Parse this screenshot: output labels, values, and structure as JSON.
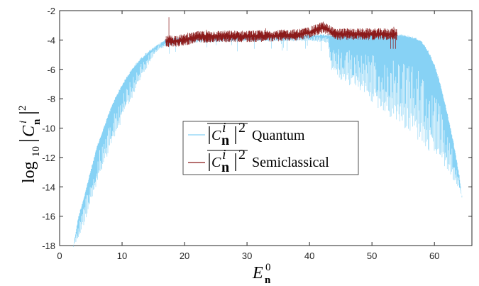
{
  "chart_data": {
    "type": "line",
    "xlabel": {
      "main": "E",
      "sub": "n",
      "sup": "0"
    },
    "ylabel": {
      "func": "log",
      "func_sub": "10",
      "var": "C",
      "var_sup": "i",
      "var_sub": "n",
      "power": "2"
    },
    "xlim": [
      0,
      66
    ],
    "ylim": [
      -18,
      -2
    ],
    "x_ticks": [
      0,
      10,
      20,
      30,
      40,
      50,
      60
    ],
    "y_ticks": [
      -18,
      -16,
      -14,
      -12,
      -10,
      -8,
      -6,
      -4,
      -2
    ],
    "grid": false,
    "legend_position": "center",
    "series": [
      {
        "name": "Quantum",
        "color": "#87d2f5",
        "envelope_upper": [
          [
            2.2,
            -18
          ],
          [
            3,
            -16
          ],
          [
            4,
            -14.5
          ],
          [
            5,
            -12.8
          ],
          [
            6,
            -11.2
          ],
          [
            7,
            -10
          ],
          [
            8,
            -8.8
          ],
          [
            9,
            -7.8
          ],
          [
            10,
            -7
          ],
          [
            11,
            -6.3
          ],
          [
            12,
            -5.7
          ],
          [
            13,
            -5.2
          ],
          [
            14,
            -4.8
          ],
          [
            15,
            -4.5
          ],
          [
            16,
            -4.2
          ],
          [
            17,
            -3.9
          ],
          [
            20,
            -3.8
          ],
          [
            30,
            -3.7
          ],
          [
            40,
            -3.6
          ],
          [
            43,
            -3.6
          ],
          [
            50,
            -3.6
          ],
          [
            55,
            -3.6
          ],
          [
            56,
            -3.7
          ],
          [
            57,
            -3.8
          ],
          [
            58,
            -4.1
          ],
          [
            59,
            -4.7
          ],
          [
            60,
            -5.6
          ],
          [
            61,
            -7
          ],
          [
            62,
            -8.8
          ],
          [
            63,
            -10.8
          ],
          [
            64,
            -13.2
          ],
          [
            64.4,
            -14.6
          ]
        ],
        "envelope_lower": [
          [
            2.2,
            -18
          ],
          [
            3,
            -17.6
          ],
          [
            4,
            -16.5
          ],
          [
            5,
            -15.2
          ],
          [
            6,
            -13.9
          ],
          [
            7,
            -12.6
          ],
          [
            8,
            -11.5
          ],
          [
            9,
            -10.4
          ],
          [
            10,
            -9.5
          ],
          [
            11,
            -8.5
          ],
          [
            12,
            -7.6
          ],
          [
            13,
            -6.7
          ],
          [
            14,
            -5.9
          ],
          [
            15,
            -5.1
          ],
          [
            16,
            -4.6
          ],
          [
            17,
            -4.5
          ],
          [
            20,
            -4.2
          ],
          [
            30,
            -4.1
          ],
          [
            40,
            -4.1
          ],
          [
            43,
            -4.2
          ],
          [
            43.5,
            -6.3
          ],
          [
            44,
            -6.5
          ],
          [
            46,
            -7
          ],
          [
            48,
            -7.5
          ],
          [
            50,
            -8.3
          ],
          [
            52,
            -9
          ],
          [
            54,
            -9.6
          ],
          [
            56,
            -10.4
          ],
          [
            58,
            -11.3
          ],
          [
            60,
            -12
          ],
          [
            62,
            -12.8
          ],
          [
            63,
            -13.5
          ],
          [
            64,
            -14.2
          ],
          [
            64.4,
            -14.6
          ]
        ]
      },
      {
        "name": "Semiclassical",
        "color": "#8b1a1a",
        "x_range": [
          17,
          54
        ],
        "baseline": [
          [
            17,
            -4.1
          ],
          [
            19,
            -4.05
          ],
          [
            21,
            -3.9
          ],
          [
            22,
            -3.8
          ],
          [
            25,
            -3.75
          ],
          [
            30,
            -3.75
          ],
          [
            35,
            -3.7
          ],
          [
            38,
            -3.65
          ],
          [
            40,
            -3.5
          ],
          [
            42,
            -3.15
          ],
          [
            43,
            -3.3
          ],
          [
            44,
            -3.6
          ],
          [
            47,
            -3.6
          ],
          [
            50,
            -3.6
          ],
          [
            52,
            -3.6
          ],
          [
            54,
            -3.6
          ]
        ],
        "spikes": [
          [
            17.5,
            -2.45
          ],
          [
            20.5,
            -3.5
          ],
          [
            23.5,
            -3.3
          ],
          [
            33,
            -3.2
          ],
          [
            42.2,
            -2.75
          ],
          [
            53.5,
            -3.1
          ]
        ]
      }
    ],
    "legend_entries": [
      {
        "label_math": "|C",
        "label_sup": "i",
        "label_sub": "n",
        "label_pow": "2",
        "text": "Quantum"
      },
      {
        "label_math": "|C",
        "label_sup": "i",
        "label_sub": "n",
        "label_pow": "2",
        "text": "Semiclassical"
      }
    ]
  }
}
